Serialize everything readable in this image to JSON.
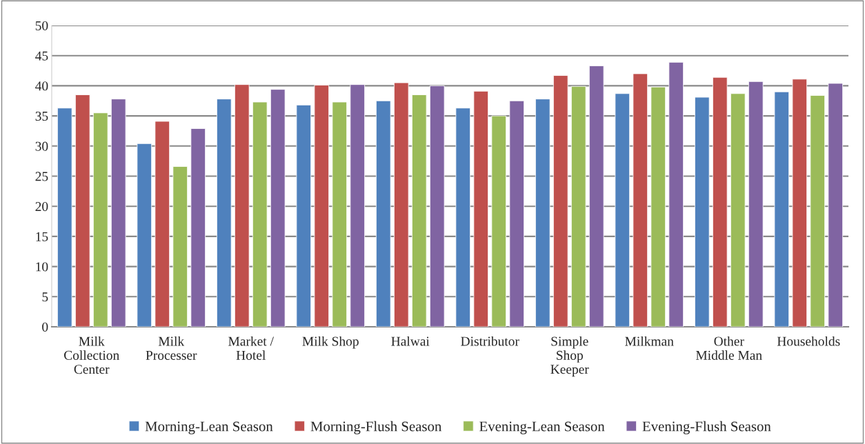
{
  "chart_data": {
    "type": "bar",
    "categories": [
      "Milk\nCollection\nCenter",
      "Milk\nProcesser",
      "Market /\nHotel",
      "Milk Shop",
      "Halwai",
      "Distributor",
      "Simple\nShop\nKeeper",
      "Milkman",
      "Other\nMiddle Man",
      "Households"
    ],
    "series": [
      {
        "name": "Morning-Lean Season",
        "color": "#4f81bd",
        "values": [
          36.3,
          30.4,
          37.8,
          36.8,
          37.5,
          36.3,
          37.8,
          38.7,
          38.1,
          39.0
        ]
      },
      {
        "name": "Morning-Flush Season",
        "color": "#c0504d",
        "values": [
          38.5,
          34.1,
          40.2,
          40.1,
          40.5,
          39.1,
          41.7,
          42.0,
          41.4,
          41.1
        ]
      },
      {
        "name": "Evening-Lean Season",
        "color": "#9bbb59",
        "values": [
          35.5,
          26.6,
          37.3,
          37.3,
          38.5,
          35.0,
          39.9,
          39.8,
          38.7,
          38.4
        ]
      },
      {
        "name": "Evening-Flush Season",
        "color": "#8064a2",
        "values": [
          37.8,
          32.9,
          39.4,
          40.2,
          40.0,
          37.5,
          43.3,
          43.9,
          40.7,
          40.4
        ]
      }
    ],
    "ylim": [
      0,
      50
    ],
    "yticks": [
      0,
      5,
      10,
      15,
      20,
      25,
      30,
      35,
      40,
      45,
      50
    ],
    "grid": "y",
    "legend": "bottom"
  }
}
